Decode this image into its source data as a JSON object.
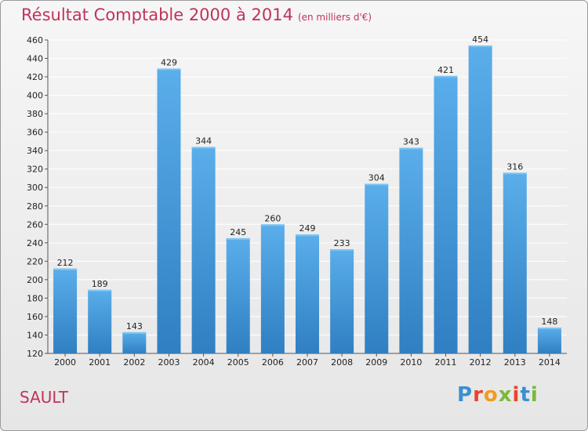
{
  "header": {
    "title": "Résultat Comptable 2000 à 2014",
    "subtitle": "(en milliers d'€)"
  },
  "footer": {
    "place": "SAULT",
    "logo": "Proxiti"
  },
  "colors": {
    "bar_top": "#5aaeea",
    "bar_bottom": "#2f7fc2",
    "title": "#c0335a",
    "grid": "#ffffff"
  },
  "chart_data": {
    "type": "bar",
    "title": "Résultat Comptable 2000 à 2014",
    "subtitle": "(en milliers d'€)",
    "categories": [
      "2000",
      "2001",
      "2002",
      "2003",
      "2004",
      "2005",
      "2006",
      "2007",
      "2008",
      "2009",
      "2010",
      "2011",
      "2012",
      "2013",
      "2014"
    ],
    "values": [
      212,
      189,
      143,
      429,
      344,
      245,
      260,
      249,
      233,
      304,
      343,
      421,
      454,
      316,
      148
    ],
    "ylim": [
      120,
      460
    ],
    "yticks": [
      120,
      140,
      160,
      180,
      200,
      220,
      240,
      260,
      280,
      300,
      320,
      340,
      360,
      380,
      400,
      420,
      440,
      460
    ],
    "grid": true,
    "legend": "none"
  }
}
